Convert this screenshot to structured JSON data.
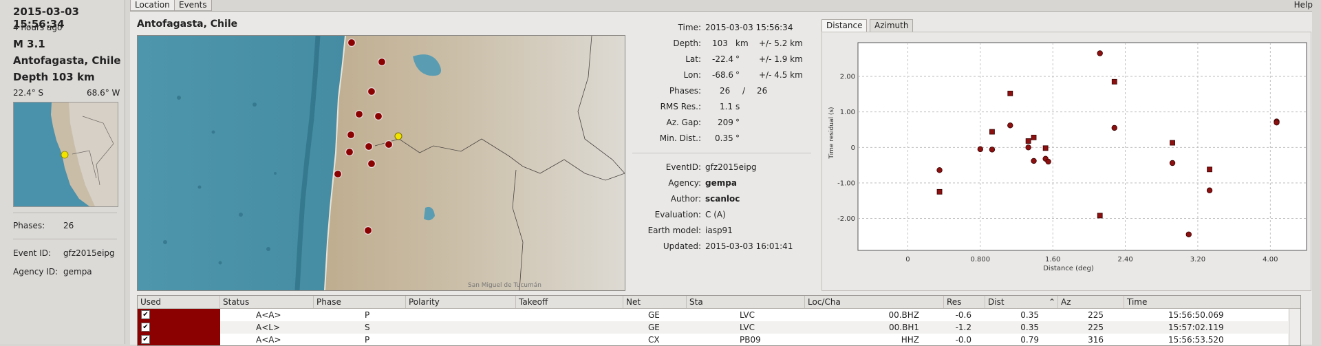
{
  "sidebar": {
    "datetime": "2015-03-03 15:56:34",
    "ago": "4 hours ago",
    "magnitude": "M 3.1",
    "region": "Antofagasta, Chile",
    "depth": "Depth 103 km",
    "lat": "22.4° S",
    "lon": "68.6° W",
    "phases_label": "Phases:",
    "phases_value": "26",
    "event_id_label": "Event ID:",
    "event_id_value": "gfz2015eipg",
    "agency_label": "Agency ID:",
    "agency_value": "gempa"
  },
  "tabs": [
    "Location",
    "Events"
  ],
  "help": "Help",
  "region_title": "Antofagasta, Chile",
  "map_attribution": "San Miguel de Tucumán",
  "origin": {
    "time_label": "Time:",
    "time": "2015-03-03 15:56:34",
    "depth_label": "Depth:",
    "depth": "103",
    "depth_unit": "km",
    "depth_err": "+/- 5.2 km",
    "lat_label": "Lat:",
    "lat": "-22.4",
    "lat_unit": "°",
    "lat_err": "+/- 1.9 km",
    "lon_label": "Lon:",
    "lon": "-68.6",
    "lon_unit": "°",
    "lon_err": "+/- 4.5 km",
    "phases_label": "Phases:",
    "phases_used": "26",
    "phases_sep": "/",
    "phases_total": "26",
    "rms_label": "RMS Res.:",
    "rms": "1.1",
    "rms_unit": "s",
    "azgap_label": "Az. Gap:",
    "azgap": "209",
    "azgap_unit": "°",
    "mindist_label": "Min. Dist.:",
    "mindist": "0.35",
    "mindist_unit": "°",
    "eventid_label": "EventID:",
    "eventid": "gfz2015eipg",
    "agency_label": "Agency:",
    "agency": "gempa",
    "author_label": "Author:",
    "author": "scanloc",
    "evaluation_label": "Evaluation:",
    "evaluation": "C (A)",
    "earthmodel_label": "Earth model:",
    "earthmodel": "iasp91",
    "updated_label": "Updated:",
    "updated": "2015-03-03 16:01:41"
  },
  "plot_tabs": [
    "Distance",
    "Azimuth"
  ],
  "chart_data": {
    "type": "scatter",
    "xlabel": "Distance (deg)",
    "ylabel": "Time residual (s)",
    "xlim": [
      -0.55,
      4.4
    ],
    "ylim": [
      -2.9,
      2.95
    ],
    "xticks": [
      0,
      0.8,
      1.6,
      2.4,
      3.2,
      4.0
    ],
    "xtick_labels": [
      "0",
      "0.800",
      "1.60",
      "2.40",
      "3.20",
      "4.00"
    ],
    "yticks": [
      -2,
      -1,
      0,
      1,
      2
    ],
    "ytick_labels": [
      "-2.00",
      "-1.00",
      "0",
      "1.00",
      "2.00"
    ],
    "grid": true,
    "color": "#8b1010",
    "series": [
      {
        "marker": "circle",
        "points": [
          [
            0.35,
            -0.64
          ],
          [
            0.8,
            -0.05
          ],
          [
            0.93,
            -0.06
          ],
          [
            1.13,
            0.62
          ],
          [
            1.33,
            0.0
          ],
          [
            1.39,
            -0.38
          ],
          [
            1.52,
            -0.32
          ],
          [
            1.55,
            -0.4
          ],
          [
            2.12,
            2.65
          ],
          [
            2.28,
            0.55
          ],
          [
            2.92,
            -0.44
          ],
          [
            3.1,
            -2.45
          ],
          [
            3.33,
            -1.21
          ],
          [
            4.07,
            0.73
          ],
          [
            4.07,
            0.7
          ]
        ]
      },
      {
        "marker": "square",
        "points": [
          [
            0.35,
            -1.25
          ],
          [
            0.93,
            0.44
          ],
          [
            1.13,
            1.52
          ],
          [
            1.33,
            0.18
          ],
          [
            1.39,
            0.28
          ],
          [
            1.52,
            -0.02
          ],
          [
            2.12,
            -1.92
          ],
          [
            2.28,
            1.85
          ],
          [
            2.92,
            0.13
          ],
          [
            3.33,
            -0.62
          ]
        ]
      }
    ]
  },
  "table": {
    "headers": [
      "Used",
      "Status",
      "Phase",
      "Polarity",
      "Takeoff",
      "Net",
      "Sta",
      "Loc/Cha",
      "Res",
      "Dist",
      "Az",
      "Time"
    ],
    "rows": [
      {
        "status": "A<A>",
        "phase": "P",
        "net": "GE",
        "sta": "LVC",
        "loccha": "00.BHZ",
        "res": "-0.6",
        "dist": "0.35",
        "az": "225",
        "time": "15:56:50.069"
      },
      {
        "status": "A<L>",
        "phase": "S",
        "net": "GE",
        "sta": "LVC",
        "loccha": "00.BH1",
        "res": "-1.2",
        "dist": "0.35",
        "az": "225",
        "time": "15:57:02.119"
      },
      {
        "status": "A<A>",
        "phase": "P",
        "net": "CX",
        "sta": "PB09",
        "loccha": "HHZ",
        "res": "-0.0",
        "dist": "0.79",
        "az": "316",
        "time": "15:56:53.520"
      }
    ]
  }
}
